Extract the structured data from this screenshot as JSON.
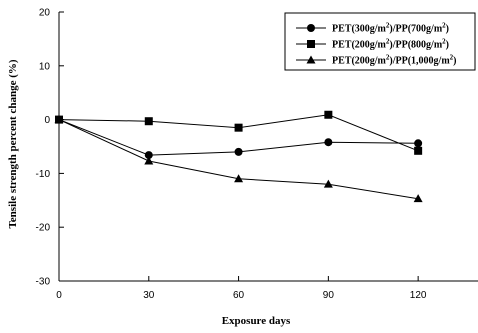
{
  "chart_data": {
    "type": "line",
    "x": [
      0,
      30,
      60,
      90,
      120
    ],
    "xticks": [
      "0",
      "30",
      "60",
      "90",
      "120"
    ],
    "yticks": [
      "20",
      "10",
      "0",
      "-10",
      "-20",
      "-30"
    ],
    "xlabel": "Exposure days",
    "ylabel": "Tensile strength percent change (%)",
    "xlim": [
      0,
      140
    ],
    "ylim": [
      -30,
      20
    ],
    "grid": false,
    "legend_position": "top-right",
    "series": [
      {
        "name": "PET(300g/m²)/PP(700g/m²)",
        "label_parts": [
          "PET(300g/m",
          "2",
          ")/PP(700g/m",
          "2",
          ")"
        ],
        "marker": "circle",
        "values": [
          0,
          -6.6,
          -6.0,
          -4.2,
          -4.4
        ]
      },
      {
        "name": "PET(200g/m²)/PP(800g/m²)",
        "label_parts": [
          "PET(200g/m",
          "2",
          ")/PP(800g/m",
          "2",
          ")"
        ],
        "marker": "square",
        "values": [
          0,
          -0.3,
          -1.5,
          0.9,
          -5.8
        ]
      },
      {
        "name": "PET(200g/m²)/PP(1,000g/m²)",
        "label_parts": [
          "PET(200g/m",
          "2",
          ")/PP(1,000g/m",
          "2",
          ")"
        ],
        "marker": "triangle",
        "values": [
          0,
          -7.7,
          -11.0,
          -12.0,
          -14.7
        ]
      }
    ]
  }
}
